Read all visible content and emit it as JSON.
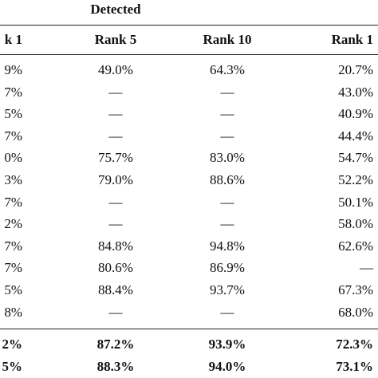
{
  "header": {
    "group": "Detected",
    "columns": [
      "k 1",
      "Rank 5",
      "Rank 10",
      "Rank 1"
    ]
  },
  "table": {
    "rows": [
      [
        "9%",
        "49.0%",
        "64.3%",
        "20.7%"
      ],
      [
        "7%",
        "—",
        "—",
        "43.0%"
      ],
      [
        "5%",
        "—",
        "—",
        "40.9%"
      ],
      [
        "7%",
        "—",
        "—",
        "44.4%"
      ],
      [
        "0%",
        "75.7%",
        "83.0%",
        "54.7%"
      ],
      [
        "3%",
        "79.0%",
        "88.6%",
        "52.2%"
      ],
      [
        "7%",
        "—",
        "—",
        "50.1%"
      ],
      [
        "2%",
        "—",
        "—",
        "58.0%"
      ],
      [
        "7%",
        "84.8%",
        "94.8%",
        "62.6%"
      ],
      [
        "7%",
        "80.6%",
        "86.9%",
        "—"
      ],
      [
        "5%",
        "88.4%",
        "93.7%",
        "67.3%"
      ],
      [
        "8%",
        "—",
        "—",
        "68.0%"
      ]
    ],
    "summary_rows": [
      [
        "2%",
        "87.2%",
        "93.9%",
        "72.3%"
      ],
      [
        "5%",
        "88.3%",
        "94.0%",
        "73.1%"
      ]
    ]
  }
}
